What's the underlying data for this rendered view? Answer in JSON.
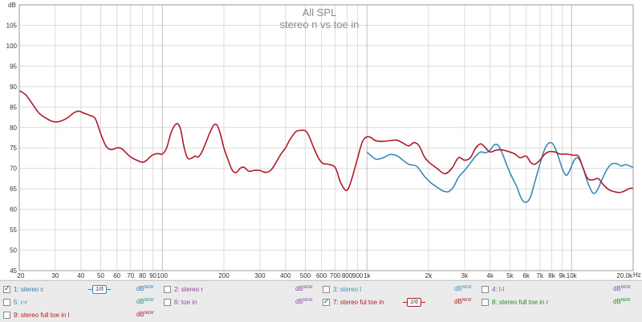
{
  "chart_data": {
    "type": "line",
    "title": "All SPL",
    "subtitle": "stereo n vs toe in",
    "ylabel": "dB",
    "xunit": "Hz",
    "x_scale": "log",
    "xlim": [
      20,
      20000
    ],
    "ylim": [
      45,
      110
    ],
    "grid": true,
    "y_ticks": [
      45,
      50,
      55,
      60,
      65,
      70,
      75,
      80,
      85,
      90,
      95,
      100,
      105
    ],
    "x_ticks": [
      {
        "value": 20,
        "label": "20"
      },
      {
        "value": 30,
        "label": "30"
      },
      {
        "value": 40,
        "label": "40"
      },
      {
        "value": 50,
        "label": "50"
      },
      {
        "value": 60,
        "label": "60"
      },
      {
        "value": 70,
        "label": "70"
      },
      {
        "value": 80,
        "label": "80"
      },
      {
        "value": 90,
        "label": "90"
      },
      {
        "value": 100,
        "label": "100"
      },
      {
        "value": 200,
        "label": "200"
      },
      {
        "value": 300,
        "label": "300"
      },
      {
        "value": 400,
        "label": "400"
      },
      {
        "value": 500,
        "label": "500"
      },
      {
        "value": 600,
        "label": "600"
      },
      {
        "value": 700,
        "label": "700"
      },
      {
        "value": 800,
        "label": "800"
      },
      {
        "value": 900,
        "label": "900"
      },
      {
        "value": 1000,
        "label": "1k"
      },
      {
        "value": 2000,
        "label": "2k"
      },
      {
        "value": 3000,
        "label": "3k"
      },
      {
        "value": 4000,
        "label": "4k"
      },
      {
        "value": 5000,
        "label": "5k"
      },
      {
        "value": 6000,
        "label": "6k"
      },
      {
        "value": 7000,
        "label": "7k"
      },
      {
        "value": 8000,
        "label": "8k"
      },
      {
        "value": 9000,
        "label": "9k"
      },
      {
        "value": 10000,
        "label": "10k"
      },
      {
        "value": 20000,
        "label": "20.0k"
      }
    ],
    "series": [
      {
        "name": "1: stereo c",
        "color": "#3a8ab8",
        "points": [
          [
            1000,
            74
          ],
          [
            1100,
            72.3
          ],
          [
            1200,
            72.6
          ],
          [
            1300,
            73.4
          ],
          [
            1400,
            73.1
          ],
          [
            1500,
            72
          ],
          [
            1600,
            71
          ],
          [
            1750,
            70.5
          ],
          [
            1900,
            68.2
          ],
          [
            2050,
            66.5
          ],
          [
            2200,
            65.4
          ],
          [
            2350,
            64.5
          ],
          [
            2500,
            64.3
          ],
          [
            2650,
            65.5
          ],
          [
            2800,
            67.8
          ],
          [
            3000,
            69.5
          ],
          [
            3200,
            71.3
          ],
          [
            3400,
            73
          ],
          [
            3600,
            74
          ],
          [
            3800,
            73.8
          ],
          [
            4000,
            74.5
          ],
          [
            4200,
            75.8
          ],
          [
            4400,
            75.5
          ],
          [
            4600,
            73.5
          ],
          [
            4850,
            70.5
          ],
          [
            5100,
            68
          ],
          [
            5400,
            65.5
          ],
          [
            5700,
            62.5
          ],
          [
            6000,
            61.7
          ],
          [
            6300,
            63
          ],
          [
            6600,
            66.5
          ],
          [
            7000,
            71
          ],
          [
            7300,
            74
          ],
          [
            7600,
            75.8
          ],
          [
            7900,
            76.3
          ],
          [
            8200,
            75.6
          ],
          [
            8600,
            73
          ],
          [
            9000,
            70
          ],
          [
            9400,
            68.3
          ],
          [
            9800,
            69.5
          ],
          [
            10300,
            72
          ],
          [
            10800,
            72.5
          ],
          [
            11400,
            70
          ],
          [
            12000,
            66.5
          ],
          [
            12700,
            64
          ],
          [
            13300,
            64.5
          ],
          [
            14000,
            67
          ],
          [
            14800,
            69.5
          ],
          [
            15600,
            71
          ],
          [
            16500,
            71.2
          ],
          [
            17500,
            70.6
          ],
          [
            18500,
            70.9
          ],
          [
            20000,
            70.2
          ]
        ]
      },
      {
        "name": "7: stereo ful toe in",
        "color": "#b01a2a",
        "points": [
          [
            20,
            89
          ],
          [
            21.5,
            88
          ],
          [
            23,
            86
          ],
          [
            25,
            83.5
          ],
          [
            27,
            82.3
          ],
          [
            29,
            81.5
          ],
          [
            31,
            81.4
          ],
          [
            34,
            82.2
          ],
          [
            37,
            83.6
          ],
          [
            39,
            84
          ],
          [
            41,
            83.6
          ],
          [
            44,
            83
          ],
          [
            47,
            82.2
          ],
          [
            50,
            78.5
          ],
          [
            53,
            75.5
          ],
          [
            56,
            74.6
          ],
          [
            60,
            75
          ],
          [
            63,
            74.9
          ],
          [
            66,
            74
          ],
          [
            70,
            72.8
          ],
          [
            75,
            72
          ],
          [
            80,
            71.5
          ],
          [
            84,
            72
          ],
          [
            88,
            73
          ],
          [
            92,
            73.5
          ],
          [
            96,
            73.6
          ],
          [
            100,
            73.5
          ],
          [
            105,
            75
          ],
          [
            110,
            78.5
          ],
          [
            115,
            80.5
          ],
          [
            119,
            80.9
          ],
          [
            123,
            79.5
          ],
          [
            128,
            75
          ],
          [
            133,
            72.5
          ],
          [
            139,
            72.5
          ],
          [
            145,
            73
          ],
          [
            150,
            72.8
          ],
          [
            156,
            74
          ],
          [
            163,
            76.2
          ],
          [
            170,
            78.5
          ],
          [
            178,
            80.5
          ],
          [
            185,
            80.6
          ],
          [
            192,
            78.5
          ],
          [
            200,
            75
          ],
          [
            210,
            72
          ],
          [
            220,
            69.5
          ],
          [
            230,
            69
          ],
          [
            240,
            70
          ],
          [
            250,
            70.3
          ],
          [
            265,
            69.3
          ],
          [
            280,
            69.5
          ],
          [
            300,
            69.5
          ],
          [
            320,
            69
          ],
          [
            340,
            69.6
          ],
          [
            360,
            71.5
          ],
          [
            380,
            73.5
          ],
          [
            400,
            75
          ],
          [
            420,
            77
          ],
          [
            450,
            79
          ],
          [
            480,
            79.3
          ],
          [
            500,
            79.2
          ],
          [
            520,
            78
          ],
          [
            550,
            75
          ],
          [
            580,
            72.5
          ],
          [
            610,
            71.2
          ],
          [
            650,
            71
          ],
          [
            700,
            70.2
          ],
          [
            740,
            66.8
          ],
          [
            780,
            64.8
          ],
          [
            810,
            65
          ],
          [
            850,
            68
          ],
          [
            900,
            72.5
          ],
          [
            950,
            76.5
          ],
          [
            1000,
            77.7
          ],
          [
            1050,
            77.5
          ],
          [
            1100,
            76.8
          ],
          [
            1200,
            76.6
          ],
          [
            1300,
            76.8
          ],
          [
            1400,
            76.9
          ],
          [
            1500,
            76.2
          ],
          [
            1600,
            75.5
          ],
          [
            1700,
            76.3
          ],
          [
            1800,
            75.5
          ],
          [
            1900,
            73
          ],
          [
            2000,
            71.6
          ],
          [
            2200,
            70
          ],
          [
            2400,
            68.7
          ],
          [
            2600,
            70
          ],
          [
            2800,
            72.6
          ],
          [
            3000,
            72
          ],
          [
            3200,
            72.6
          ],
          [
            3400,
            75
          ],
          [
            3600,
            76
          ],
          [
            3800,
            75
          ],
          [
            4000,
            74
          ],
          [
            4300,
            74.5
          ],
          [
            4600,
            74.5
          ],
          [
            5000,
            74
          ],
          [
            5300,
            73.5
          ],
          [
            5600,
            72.6
          ],
          [
            6000,
            73
          ],
          [
            6300,
            71.5
          ],
          [
            6600,
            71
          ],
          [
            7000,
            72
          ],
          [
            7400,
            73.5
          ],
          [
            7800,
            74.1
          ],
          [
            8300,
            74
          ],
          [
            8800,
            73.5
          ],
          [
            9500,
            73.5
          ],
          [
            10200,
            73.2
          ],
          [
            10800,
            73
          ],
          [
            11400,
            70
          ],
          [
            12000,
            67.5
          ],
          [
            12700,
            67.2
          ],
          [
            13500,
            67.5
          ],
          [
            14300,
            66
          ],
          [
            15200,
            64.8
          ],
          [
            16200,
            64.3
          ],
          [
            17200,
            64.1
          ],
          [
            18200,
            64.5
          ],
          [
            19200,
            65.1
          ],
          [
            20000,
            65.1
          ]
        ]
      }
    ]
  },
  "legend": [
    {
      "label": "1: stereo c",
      "color": "#2a7ab5",
      "checked": true,
      "swatch": "1/6",
      "swatch_color": "#3a8ab8",
      "db_label": "dB",
      "db_sup": "NEW",
      "db_color": "#2a7ab5"
    },
    {
      "label": "2: stereo r",
      "color": "#9a3fa0",
      "checked": false,
      "db_label": "dB",
      "db_sup": "NEW",
      "db_color": "#9a3fa0"
    },
    {
      "label": "3: stereo l",
      "color": "#4a8fc0",
      "checked": false,
      "db_label": "dB",
      "db_sup": "NEW",
      "db_color": "#4a8fc0"
    },
    {
      "label": "4: l-l",
      "color": "#6a5ab0",
      "checked": false,
      "db_label": "dB",
      "db_sup": "NEW",
      "db_color": "#6a5ab0"
    },
    {
      "label": "5: r-r",
      "color": "#2a8f8a",
      "checked": false,
      "db_label": "dB",
      "db_sup": "NEW",
      "db_color": "#2a8f8a"
    },
    {
      "label": "6: toe in",
      "color": "#8a4ab0",
      "checked": false,
      "db_label": "dB",
      "db_sup": "NEW",
      "db_color": "#8a4ab0"
    },
    {
      "label": "7: stereo ful toe in",
      "color": "#b01a2a",
      "checked": true,
      "swatch": "1/6",
      "swatch_color": "#b01a2a",
      "db_label": "dB",
      "db_sup": "NEW",
      "db_color": "#b01a2a"
    },
    {
      "label": "8: stereo full toe in r",
      "color": "#2a8a2a",
      "checked": false,
      "db_label": "dB",
      "db_sup": "NEW",
      "db_color": "#2a8a2a"
    },
    {
      "label": "9: stereo full toe in l",
      "color": "#b01a2a",
      "checked": false,
      "db_label": "dB",
      "db_sup": "NEW",
      "db_color": "#b01a2a"
    }
  ]
}
